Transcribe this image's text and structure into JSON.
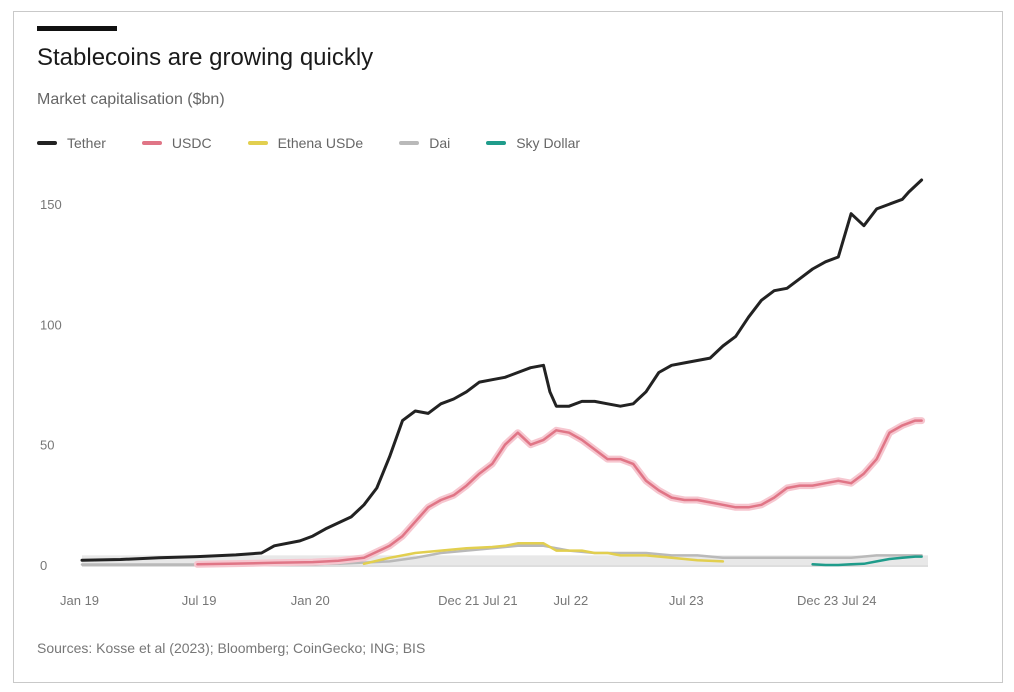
{
  "header": {
    "title": "Stablecoins are growing quickly",
    "subtitle": "Market capitalisation ($bn)"
  },
  "source": "Sources: Kosse et al (2023); Bloomberg; CoinGecko; ING; BIS",
  "colors": {
    "tether": "#222222",
    "usdc": "#e07586",
    "ethena": "#e2cf4f",
    "dai": "#b9b9b9",
    "skydollar": "#1f9c8b",
    "area": "#d6d6d6"
  },
  "chart_data": {
    "type": "line",
    "title": "Stablecoins are growing quickly",
    "ylabel": "Market capitalisation ($bn)",
    "ylim": [
      0,
      160
    ],
    "xlim": [
      0,
      66
    ],
    "y_ticks": [
      0,
      50,
      100,
      150
    ],
    "x_tick_labels": [
      {
        "label": "Jan 19",
        "x": 0
      },
      {
        "label": "Jul 19",
        "x": 9.5
      },
      {
        "label": "Jan 20",
        "x": 18
      },
      {
        "label": "Dec 21 Jul 21",
        "x": 29.5
      },
      {
        "label": "Jul 22",
        "x": 38.5
      },
      {
        "label": "Jul 23",
        "x": 47.5
      },
      {
        "label": "Dec 23 Jul 24",
        "x": 57.5
      }
    ],
    "grid": false,
    "legend_position": "top-left",
    "series": [
      {
        "name": "Tether",
        "key": "tether",
        "points": [
          [
            0,
            2
          ],
          [
            3,
            2.3
          ],
          [
            6,
            3
          ],
          [
            9,
            3.5
          ],
          [
            12,
            4.2
          ],
          [
            14,
            5
          ],
          [
            15,
            8
          ],
          [
            17,
            10
          ],
          [
            18,
            12
          ],
          [
            19,
            15
          ],
          [
            21,
            20
          ],
          [
            22,
            25
          ],
          [
            23,
            32
          ],
          [
            24,
            45
          ],
          [
            25,
            60
          ],
          [
            26,
            64
          ],
          [
            27,
            63
          ],
          [
            28,
            67
          ],
          [
            29,
            69
          ],
          [
            30,
            72
          ],
          [
            31,
            76
          ],
          [
            32,
            77
          ],
          [
            33,
            78
          ],
          [
            34,
            80
          ],
          [
            35,
            82
          ],
          [
            36,
            83
          ],
          [
            36.5,
            72
          ],
          [
            37,
            66
          ],
          [
            38,
            66
          ],
          [
            39,
            68
          ],
          [
            40,
            68
          ],
          [
            41,
            67
          ],
          [
            42,
            66
          ],
          [
            43,
            67
          ],
          [
            44,
            72
          ],
          [
            45,
            80
          ],
          [
            46,
            83
          ],
          [
            47,
            84
          ],
          [
            48,
            85
          ],
          [
            49,
            86
          ],
          [
            50,
            91
          ],
          [
            51,
            95
          ],
          [
            52,
            103
          ],
          [
            53,
            110
          ],
          [
            54,
            114
          ],
          [
            55,
            115
          ],
          [
            56,
            119
          ],
          [
            57,
            123
          ],
          [
            58,
            126
          ],
          [
            59,
            128
          ],
          [
            60,
            146
          ],
          [
            61,
            141
          ],
          [
            62,
            148
          ],
          [
            63,
            150
          ],
          [
            64,
            152
          ],
          [
            64.5,
            155
          ],
          [
            65.5,
            160
          ]
        ]
      },
      {
        "name": "USDC",
        "key": "usdc",
        "points": [
          [
            9,
            0.3
          ],
          [
            12,
            0.6
          ],
          [
            15,
            0.9
          ],
          [
            18,
            1.2
          ],
          [
            20,
            1.8
          ],
          [
            22,
            3
          ],
          [
            24,
            8
          ],
          [
            25,
            12
          ],
          [
            26,
            18
          ],
          [
            27,
            24
          ],
          [
            28,
            27
          ],
          [
            29,
            29
          ],
          [
            30,
            33
          ],
          [
            31,
            38
          ],
          [
            32,
            42
          ],
          [
            33,
            50
          ],
          [
            34,
            55
          ],
          [
            35,
            50
          ],
          [
            36,
            52
          ],
          [
            37,
            56
          ],
          [
            38,
            55
          ],
          [
            39,
            52
          ],
          [
            40,
            48
          ],
          [
            41,
            44
          ],
          [
            42,
            44
          ],
          [
            43,
            42
          ],
          [
            44,
            35
          ],
          [
            45,
            31
          ],
          [
            46,
            28
          ],
          [
            47,
            27
          ],
          [
            48,
            27
          ],
          [
            49,
            26
          ],
          [
            50,
            25
          ],
          [
            51,
            24
          ],
          [
            52,
            24
          ],
          [
            53,
            25
          ],
          [
            54,
            28
          ],
          [
            55,
            32
          ],
          [
            56,
            33
          ],
          [
            57,
            33
          ],
          [
            58,
            34
          ],
          [
            59,
            35
          ],
          [
            60,
            34
          ],
          [
            61,
            38
          ],
          [
            62,
            44
          ],
          [
            63,
            55
          ],
          [
            64,
            58
          ],
          [
            65,
            60
          ],
          [
            65.5,
            60
          ]
        ]
      },
      {
        "name": "Ethena USDe",
        "key": "ethena",
        "points": [
          [
            22,
            0.5
          ],
          [
            24,
            3
          ],
          [
            26,
            5
          ],
          [
            28,
            6
          ],
          [
            30,
            7
          ],
          [
            32,
            7.5
          ],
          [
            33,
            8
          ],
          [
            34,
            9
          ],
          [
            35,
            9
          ],
          [
            36,
            9
          ],
          [
            37,
            6
          ],
          [
            38,
            6
          ],
          [
            39,
            6
          ],
          [
            40,
            5
          ],
          [
            41,
            5
          ],
          [
            42,
            4
          ],
          [
            43,
            4
          ],
          [
            44,
            4
          ],
          [
            46,
            3
          ],
          [
            48,
            2
          ],
          [
            50,
            1.5
          ]
        ]
      },
      {
        "name": "Dai",
        "key": "dai",
        "points": [
          [
            0,
            0.2
          ],
          [
            10,
            0.2
          ],
          [
            20,
            0.5
          ],
          [
            24,
            1.5
          ],
          [
            26,
            3
          ],
          [
            28,
            5
          ],
          [
            30,
            6
          ],
          [
            32,
            7
          ],
          [
            34,
            8
          ],
          [
            36,
            8
          ],
          [
            38,
            6
          ],
          [
            40,
            5
          ],
          [
            42,
            5
          ],
          [
            44,
            5
          ],
          [
            46,
            4
          ],
          [
            48,
            4
          ],
          [
            50,
            3
          ],
          [
            52,
            3
          ],
          [
            54,
            3
          ],
          [
            56,
            3
          ],
          [
            58,
            3
          ],
          [
            60,
            3
          ],
          [
            62,
            4
          ],
          [
            64,
            4
          ],
          [
            65.5,
            4
          ]
        ]
      },
      {
        "name": "Sky Dollar",
        "key": "skydollar",
        "points": [
          [
            57,
            0.3
          ],
          [
            58,
            0
          ],
          [
            59,
            0
          ],
          [
            60,
            0.3
          ],
          [
            61,
            0.5
          ],
          [
            62,
            1.5
          ],
          [
            63,
            2.5
          ],
          [
            64,
            3
          ],
          [
            65,
            3.5
          ],
          [
            65.5,
            3.5
          ]
        ]
      }
    ]
  }
}
